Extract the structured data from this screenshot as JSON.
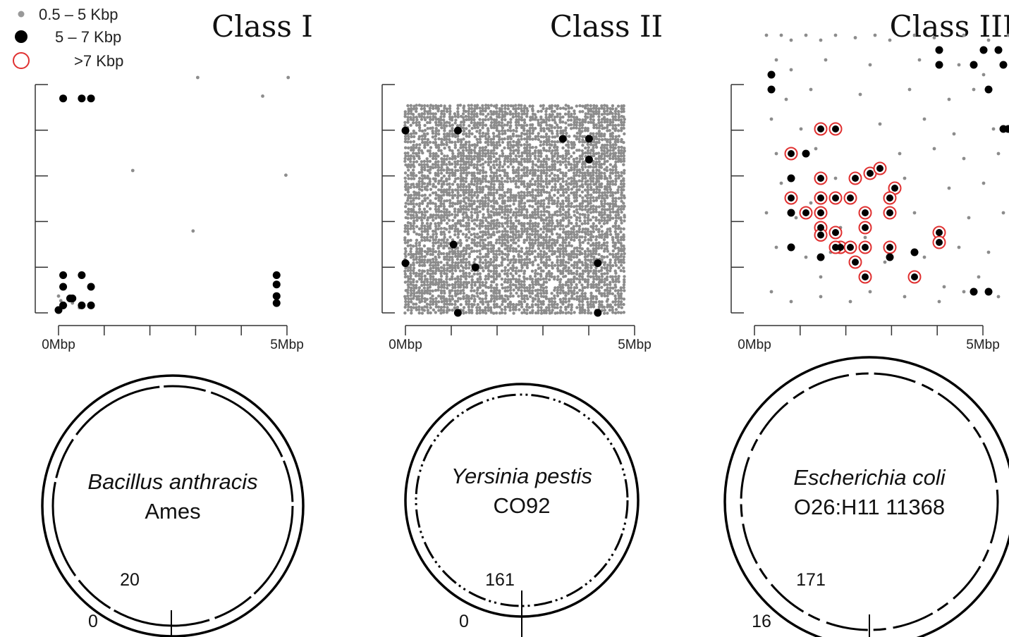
{
  "legend": {
    "items": [
      {
        "label": "0.5 – 5 Kbp",
        "marker": "small-gray-dot",
        "color": "#999999"
      },
      {
        "label": "5 – 7 Kbp",
        "marker": "large-black-dot",
        "color": "#000000"
      },
      {
        "label": ">7 Kbp",
        "marker": "red-ring",
        "color": "#e03030"
      }
    ]
  },
  "colors": {
    "small": "#8c8c8c",
    "large": "#000000",
    "ring": "#e03030"
  },
  "chart_data": [
    {
      "type": "scatter",
      "title": "Class I",
      "x_ticks": [
        "0Mbp",
        "",
        "",
        "",
        "",
        "5Mbp"
      ],
      "xlim": [
        0,
        5
      ],
      "grid": false,
      "small": [
        [
          3.0,
          5.0
        ],
        [
          4.95,
          5.0
        ],
        [
          4.4,
          4.6
        ],
        [
          1.6,
          3.0
        ],
        [
          4.9,
          2.9
        ],
        [
          2.9,
          1.7
        ],
        [
          0.05,
          0.2
        ],
        [
          0.15,
          0.1
        ],
        [
          0.3,
          0.15
        ],
        [
          0.1,
          0.05
        ],
        [
          0.45,
          0.05
        ],
        [
          0.0,
          0.3
        ]
      ],
      "large": [
        [
          0.1,
          4.55
        ],
        [
          0.5,
          4.55
        ],
        [
          0.7,
          4.55
        ],
        [
          0.1,
          0.75
        ],
        [
          0.5,
          0.75
        ],
        [
          0.1,
          0.5
        ],
        [
          0.3,
          0.25
        ],
        [
          0.1,
          0.1
        ],
        [
          0.5,
          0.1
        ],
        [
          0.7,
          0.1
        ],
        [
          0.7,
          0.5
        ],
        [
          0.25,
          0.25
        ],
        [
          0.0,
          0.0
        ],
        [
          4.7,
          0.75
        ],
        [
          4.7,
          0.55
        ],
        [
          4.7,
          0.3
        ],
        [
          4.7,
          0.15
        ]
      ],
      "ring": [],
      "circle": {
        "species": "Bacillus anthracis",
        "strain": "Ames",
        "outer_count": "0",
        "inner_count": "20"
      }
    },
    {
      "type": "scatter",
      "title": "Class II",
      "x_ticks": [
        "0Mbp",
        "",
        "",
        "",
        "",
        "5Mbp"
      ],
      "xlim": [
        0,
        5
      ],
      "dense_background": true,
      "small": [],
      "large": [
        [
          0.0,
          4.4
        ],
        [
          1.2,
          4.4
        ],
        [
          3.6,
          4.2
        ],
        [
          4.2,
          4.2
        ],
        [
          4.2,
          3.7
        ],
        [
          1.1,
          1.65
        ],
        [
          1.6,
          1.1
        ],
        [
          0.0,
          1.2
        ],
        [
          4.4,
          1.2
        ],
        [
          1.2,
          0.0
        ],
        [
          4.4,
          0.0
        ]
      ],
      "ring": [],
      "circle": {
        "species": "Yersinia pestis",
        "strain": "CO92",
        "outer_count": "0",
        "inner_count": "161"
      }
    },
    {
      "type": "scatter",
      "title": "Class III",
      "x_ticks": [
        "0Mbp",
        "",
        "",
        "",
        "",
        "5Mbp"
      ],
      "xlim": [
        0,
        5
      ],
      "small": [
        [
          0.1,
          5.5
        ],
        [
          0.4,
          5.5
        ],
        [
          0.6,
          5.4
        ],
        [
          0.9,
          5.5
        ],
        [
          1.2,
          5.4
        ],
        [
          1.5,
          5.5
        ],
        [
          1.9,
          5.45
        ],
        [
          2.3,
          5.5
        ],
        [
          2.6,
          5.4
        ],
        [
          3.1,
          5.5
        ],
        [
          3.5,
          5.45
        ],
        [
          4.1,
          5.5
        ],
        [
          4.6,
          5.4
        ],
        [
          5.0,
          5.5
        ],
        [
          0.3,
          5.0
        ],
        [
          0.6,
          4.8
        ],
        [
          1.3,
          5.0
        ],
        [
          2.2,
          4.9
        ],
        [
          3.2,
          5.0
        ],
        [
          4.0,
          4.9
        ],
        [
          4.5,
          4.7
        ],
        [
          5.1,
          4.8
        ],
        [
          0.5,
          4.2
        ],
        [
          1.0,
          4.4
        ],
        [
          2.0,
          4.3
        ],
        [
          3.0,
          4.4
        ],
        [
          3.8,
          4.2
        ],
        [
          4.3,
          4.4
        ],
        [
          5.2,
          4.3
        ],
        [
          0.2,
          3.8
        ],
        [
          0.8,
          3.6
        ],
        [
          2.4,
          3.7
        ],
        [
          3.3,
          3.8
        ],
        [
          3.9,
          3.5
        ],
        [
          4.7,
          3.6
        ],
        [
          0.3,
          3.1
        ],
        [
          1.1,
          3.2
        ],
        [
          2.8,
          3.1
        ],
        [
          3.5,
          3.2
        ],
        [
          4.1,
          3.0
        ],
        [
          4.8,
          3.1
        ],
        [
          0.4,
          2.5
        ],
        [
          1.5,
          2.6
        ],
        [
          2.9,
          2.6
        ],
        [
          3.8,
          2.4
        ],
        [
          4.5,
          2.5
        ],
        [
          5.1,
          2.6
        ],
        [
          0.1,
          1.9
        ],
        [
          0.7,
          1.8
        ],
        [
          2.6,
          2.0
        ],
        [
          3.1,
          1.9
        ],
        [
          4.2,
          1.8
        ],
        [
          4.9,
          1.9
        ],
        [
          0.3,
          1.2
        ],
        [
          0.9,
          1.0
        ],
        [
          1.4,
          1.1
        ],
        [
          2.5,
          1.2
        ],
        [
          3.3,
          1.0
        ],
        [
          4.0,
          1.2
        ],
        [
          4.6,
          1.1
        ],
        [
          5.2,
          1.0
        ],
        [
          0.2,
          0.3
        ],
        [
          0.6,
          0.1
        ],
        [
          1.2,
          0.2
        ],
        [
          1.8,
          0.1
        ],
        [
          2.2,
          0.3
        ],
        [
          2.9,
          0.2
        ],
        [
          3.6,
          0.1
        ],
        [
          4.1,
          0.3
        ],
        [
          4.8,
          0.2
        ],
        [
          5.3,
          0.1
        ],
        [
          1.0,
          2.1
        ],
        [
          1.6,
          1.6
        ],
        [
          2.1,
          1.4
        ],
        [
          2.5,
          0.9
        ],
        [
          1.2,
          0.6
        ],
        [
          3.7,
          0.4
        ],
        [
          4.4,
          0.6
        ]
      ],
      "large": [
        [
          0.2,
          4.7
        ],
        [
          0.2,
          4.4
        ],
        [
          3.6,
          5.2
        ],
        [
          3.6,
          4.9
        ],
        [
          4.5,
          5.2
        ],
        [
          4.8,
          5.2
        ],
        [
          4.3,
          4.9
        ],
        [
          4.9,
          4.9
        ],
        [
          4.6,
          4.4
        ],
        [
          4.9,
          3.6
        ],
        [
          5.0,
          3.6
        ],
        [
          0.9,
          3.1
        ],
        [
          0.6,
          2.6
        ],
        [
          0.6,
          1.9
        ],
        [
          0.6,
          1.2
        ],
        [
          1.2,
          1.0
        ],
        [
          2.6,
          1.0
        ],
        [
          3.1,
          1.1
        ],
        [
          4.3,
          0.3
        ],
        [
          4.6,
          0.3
        ]
      ],
      "ring": [
        [
          1.2,
          3.6
        ],
        [
          1.5,
          3.6
        ],
        [
          0.6,
          3.1
        ],
        [
          1.2,
          2.6
        ],
        [
          1.9,
          2.6
        ],
        [
          2.2,
          2.7
        ],
        [
          2.4,
          2.8
        ],
        [
          2.7,
          2.4
        ],
        [
          1.8,
          2.2
        ],
        [
          1.2,
          2.2
        ],
        [
          1.5,
          2.2
        ],
        [
          1.2,
          1.9
        ],
        [
          0.9,
          1.9
        ],
        [
          0.6,
          2.2
        ],
        [
          2.1,
          1.9
        ],
        [
          2.6,
          2.2
        ],
        [
          2.6,
          1.9
        ],
        [
          1.2,
          1.6
        ],
        [
          1.5,
          1.5
        ],
        [
          1.6,
          1.2
        ],
        [
          1.2,
          1.45
        ],
        [
          1.5,
          1.2
        ],
        [
          1.8,
          1.2
        ],
        [
          2.1,
          1.2
        ],
        [
          2.1,
          1.6
        ],
        [
          2.6,
          1.2
        ],
        [
          1.9,
          0.9
        ],
        [
          2.1,
          0.6
        ],
        [
          3.1,
          0.6
        ],
        [
          3.6,
          1.5
        ],
        [
          3.6,
          1.3
        ]
      ],
      "circle": {
        "species": "Escherichia coli",
        "strain": "O26:H11 11368",
        "outer_count": "16",
        "inner_count": "171"
      }
    }
  ]
}
